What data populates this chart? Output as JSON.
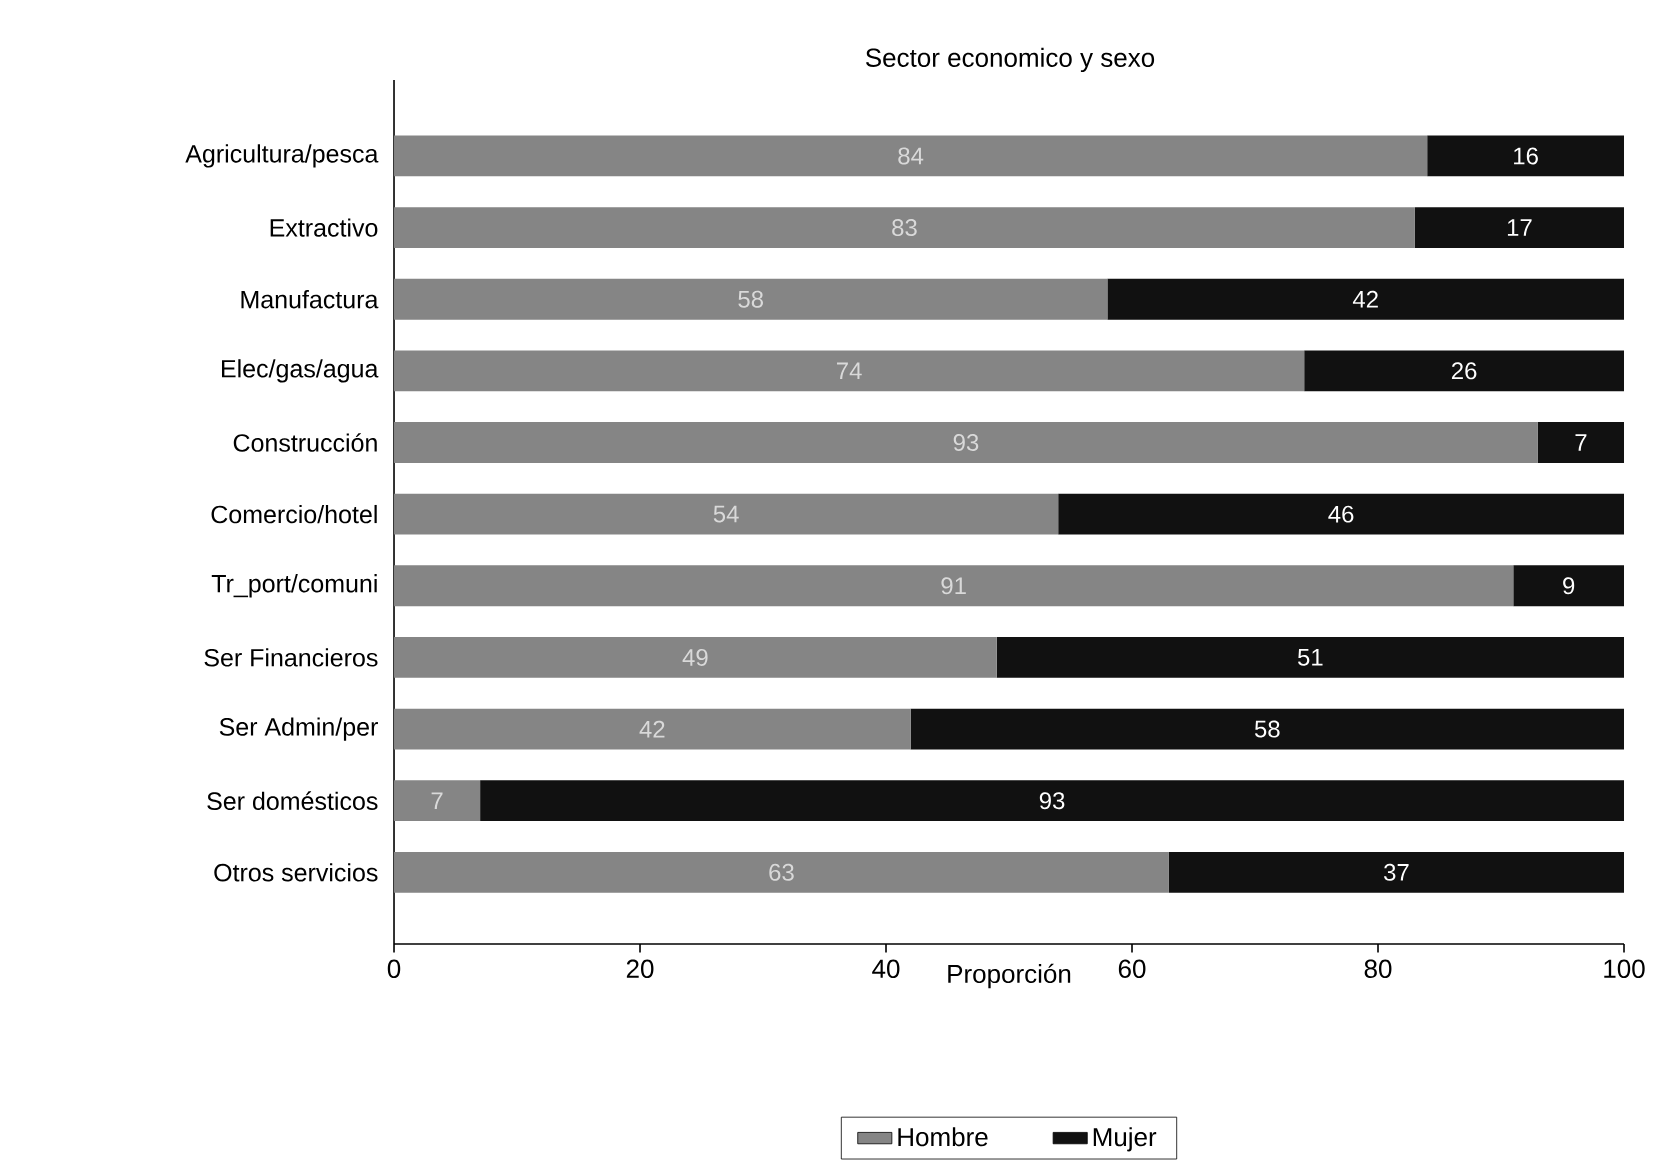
{
  "chart_data": {
    "type": "bar",
    "title": "Sector economico y sexo",
    "xlabel": "Proporción",
    "orientation": "horizontal",
    "stacked": true,
    "data_labels": true,
    "legend": "bottom",
    "categories": [
      "Agricultura/pesca",
      "Extractivo",
      "Manufactura",
      "Elec/gas/agua",
      "Construcción",
      "Comercio/hotel",
      "Tr_port/comuni",
      "Ser Financieros",
      "Ser Admin/per",
      "Ser domésticos",
      "Otros servicios"
    ],
    "xlim": [
      0,
      100
    ],
    "xticks": [
      0,
      20,
      40,
      60,
      80,
      100
    ],
    "series": [
      {
        "name": "Hombre",
        "color": "#858585",
        "values": [
          84,
          83,
          58,
          74,
          93,
          54,
          91,
          49,
          42,
          7,
          63
        ]
      },
      {
        "name": "Mujer",
        "color": "#111111",
        "values": [
          16,
          17,
          42,
          26,
          7,
          46,
          9,
          51,
          58,
          93,
          37
        ]
      }
    ]
  }
}
